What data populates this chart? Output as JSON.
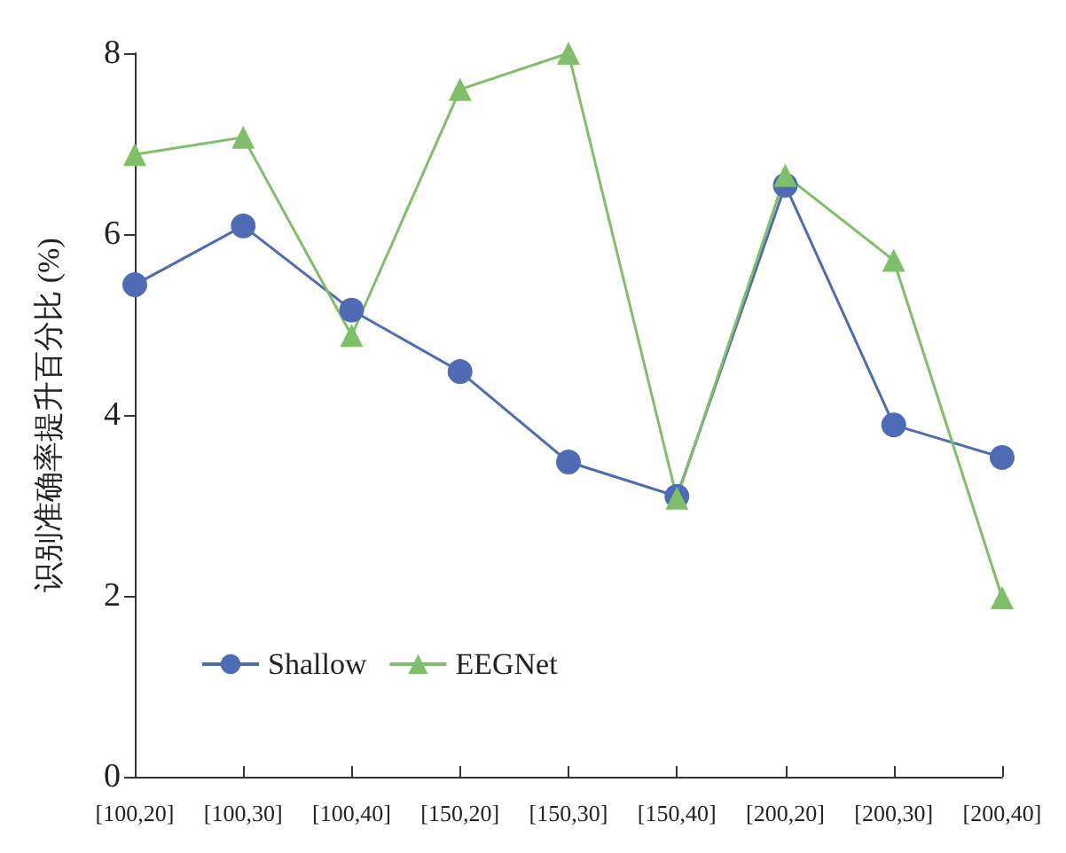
{
  "chart_data": {
    "type": "line",
    "ylabel": "识别准确率提升百分比 (%)",
    "categories": [
      "[100,20]",
      "[100,30]",
      "[100,40]",
      "[150,20]",
      "[150,30]",
      "[150,40]",
      "[200,20]",
      "[200,30]",
      "[200,40]"
    ],
    "series": [
      {
        "name": "Shallow",
        "color": "#4f6bb5",
        "marker": "circle",
        "values": [
          5.44,
          6.09,
          5.16,
          4.48,
          3.48,
          3.1,
          6.54,
          3.89,
          3.53
        ]
      },
      {
        "name": "EEGNet",
        "color": "#7fbf6a",
        "marker": "triangle",
        "values": [
          6.88,
          7.07,
          4.88,
          7.6,
          8.0,
          3.08,
          6.65,
          5.71,
          1.98
        ]
      }
    ],
    "ylim": [
      0,
      8
    ],
    "yticks": [
      0,
      2,
      4,
      6,
      8
    ],
    "grid": false,
    "legend": "bottom left",
    "line_style": "solid"
  }
}
